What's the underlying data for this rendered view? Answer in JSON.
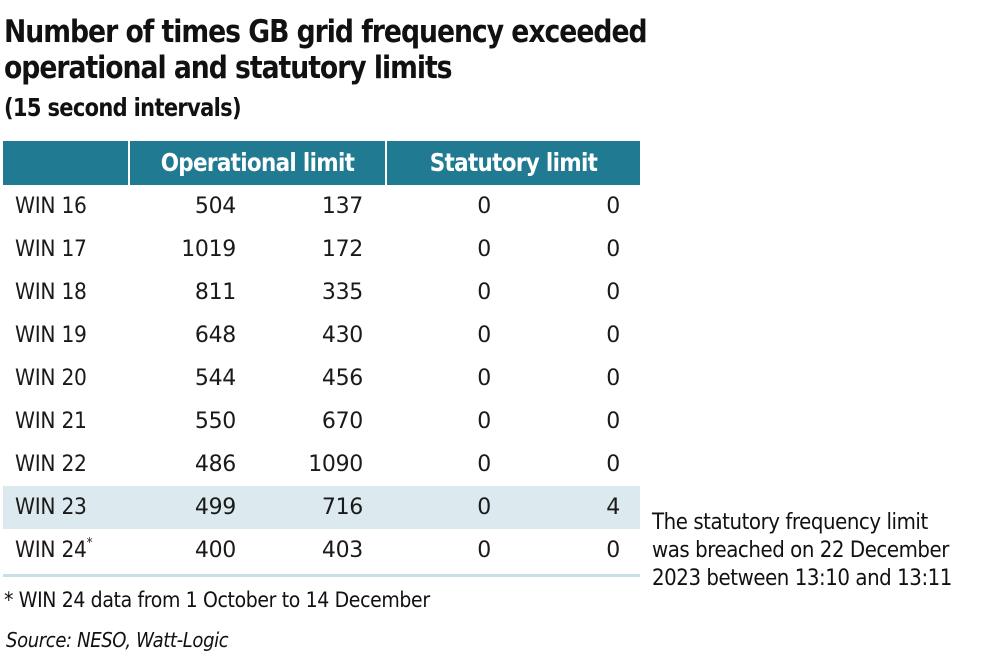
{
  "title": "Number of times GB grid frequency exceeded operational and statutory limits",
  "subtitle": "(15 second intervals)",
  "table": {
    "headers": [
      "",
      "Operational limit",
      "Statutory limit"
    ],
    "header_color": "#207a91",
    "highlight_color": "#dceaf0",
    "rows": [
      {
        "label": "WIN 16",
        "sup": "",
        "op1": "504",
        "op2": "137",
        "st1": "0",
        "st2": "0",
        "highlight": false
      },
      {
        "label": "WIN 17",
        "sup": "",
        "op1": "1019",
        "op2": "172",
        "st1": "0",
        "st2": "0",
        "highlight": false
      },
      {
        "label": "WIN 18",
        "sup": "",
        "op1": "811",
        "op2": "335",
        "st1": "0",
        "st2": "0",
        "highlight": false
      },
      {
        "label": "WIN 19",
        "sup": "",
        "op1": "648",
        "op2": "430",
        "st1": "0",
        "st2": "0",
        "highlight": false
      },
      {
        "label": "WIN 20",
        "sup": "",
        "op1": "544",
        "op2": "456",
        "st1": "0",
        "st2": "0",
        "highlight": false
      },
      {
        "label": "WIN 21",
        "sup": "",
        "op1": "550",
        "op2": "670",
        "st1": "0",
        "st2": "0",
        "highlight": false
      },
      {
        "label": "WIN 22",
        "sup": "",
        "op1": "486",
        "op2": "1090",
        "st1": "0",
        "st2": "0",
        "highlight": false
      },
      {
        "label": "WIN 23",
        "sup": "",
        "op1": "499",
        "op2": "716",
        "st1": "0",
        "st2": "4",
        "highlight": true
      },
      {
        "label": "WIN 24",
        "sup": "*",
        "op1": "400",
        "op2": "403",
        "st1": "0",
        "st2": "0",
        "highlight": false
      }
    ]
  },
  "annotation": "The statutory frequency limit was breached on 22 December 2023 between 13:10 and 13:11",
  "footnote": "* WIN 24 data from 1 October to 14 December",
  "source": "Source: NESO, Watt-Logic"
}
